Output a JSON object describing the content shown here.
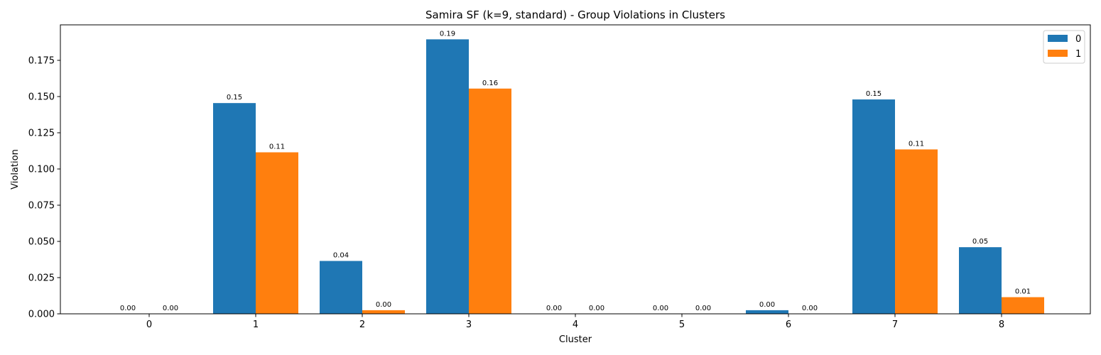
{
  "chart_data": {
    "type": "bar",
    "title": "Samira SF (k=9, standard) - Group Violations in Clusters",
    "xlabel": "Cluster",
    "ylabel": "Violation",
    "categories": [
      "0",
      "1",
      "2",
      "3",
      "4",
      "5",
      "6",
      "7",
      "8"
    ],
    "series": [
      {
        "name": "0",
        "color": "#1f77b4",
        "values": [
          0.0,
          0.1455,
          0.0365,
          0.1895,
          0.0,
          0.0,
          0.0025,
          0.148,
          0.046
        ],
        "labels": [
          "0.00",
          "0.15",
          "0.04",
          "0.19",
          "0.00",
          "0.00",
          "0.00",
          "0.15",
          "0.05"
        ]
      },
      {
        "name": "1",
        "color": "#ff7f0e",
        "values": [
          0.0,
          0.1115,
          0.0025,
          0.1555,
          0.0,
          0.0,
          0.0,
          0.1135,
          0.0115
        ],
        "labels": [
          "0.00",
          "0.11",
          "0.00",
          "0.16",
          "0.00",
          "0.00",
          "0.00",
          "0.11",
          "0.01"
        ]
      }
    ],
    "ylim": [
      0,
      0.1995
    ],
    "yticks": [
      0.0,
      0.025,
      0.05,
      0.075,
      0.1,
      0.125,
      0.15,
      0.175
    ],
    "ytick_labels": [
      "0.000",
      "0.025",
      "0.050",
      "0.075",
      "0.100",
      "0.125",
      "0.150",
      "0.175"
    ],
    "grid": false,
    "legend_position": "top-right"
  }
}
